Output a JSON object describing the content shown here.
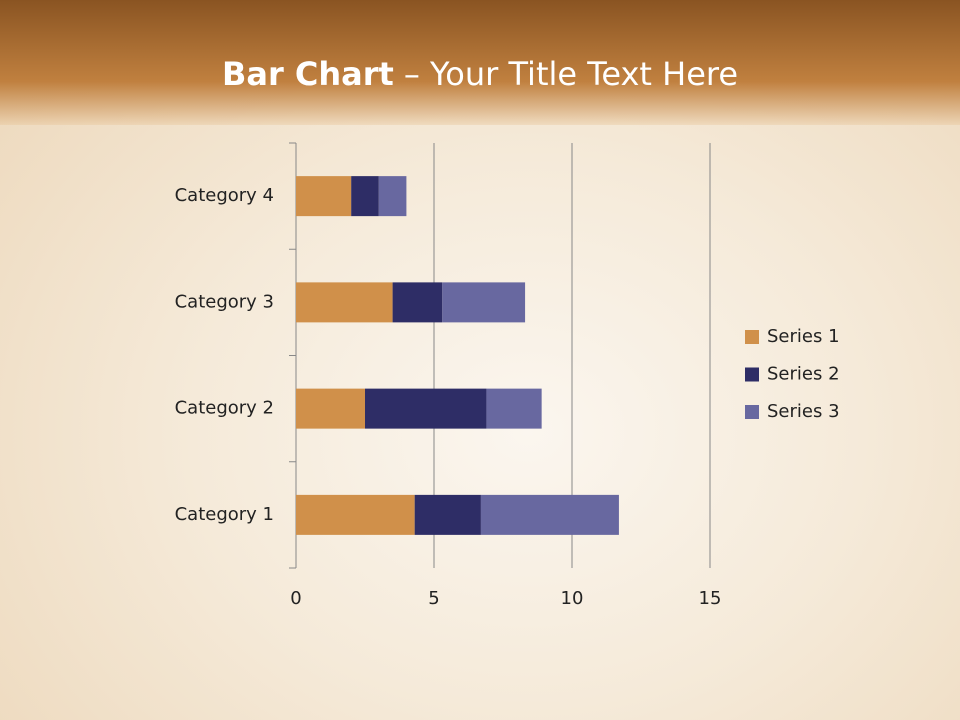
{
  "chart_data": {
    "type": "stacked_barh",
    "title": [
      "Bar Chart",
      "– Your Title Text Here"
    ],
    "categories": [
      "Category 1",
      "Category 2",
      "Category 3",
      "Category 4"
    ],
    "series": [
      {
        "name": "Series 1",
        "color": "#d0904a",
        "values": [
          4.3,
          2.5,
          3.5,
          2
        ]
      },
      {
        "name": "Series 2",
        "color": "#2e2d66",
        "values": [
          2.4,
          4.4,
          1.8,
          1
        ]
      },
      {
        "name": "Series 3",
        "color": "#6868a0",
        "values": [
          5,
          2,
          3,
          1
        ]
      }
    ],
    "xlim": [
      0,
      15
    ],
    "xticks": [
      0,
      5,
      10,
      15
    ],
    "grid": true,
    "legend": "right"
  }
}
